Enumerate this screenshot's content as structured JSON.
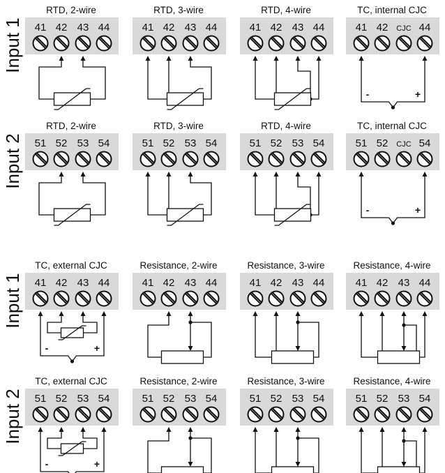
{
  "row_labels": [
    "Input 1",
    "Input 2",
    "Input 1",
    "Input 2"
  ],
  "terminal_sets": {
    "input1": [
      "41",
      "42",
      "43",
      "44"
    ],
    "input1_cjc": [
      "41",
      "42",
      "CJC",
      "44"
    ],
    "input2": [
      "51",
      "52",
      "53",
      "54"
    ],
    "input2_cjc": [
      "51",
      "52",
      "CJC",
      "54"
    ]
  },
  "panel_titles": {
    "rtd2": "RTD, 2-wire",
    "rtd3": "RTD, 3-wire",
    "rtd4": "RTD, 4-wire",
    "tc_int": "TC, internal CJC",
    "tc_ext": "TC, external CJC",
    "res2": "Resistance, 2-wire",
    "res3": "Resistance, 3-wire",
    "res4": "Resistance, 4-wire"
  },
  "polarity": {
    "minus": "-",
    "plus": "+"
  },
  "rows": [
    {
      "label": 0,
      "terms": [
        "input1",
        "input1",
        "input1",
        "input1_cjc"
      ],
      "panels": [
        "rtd2",
        "rtd3",
        "rtd4",
        "tc_int"
      ]
    },
    {
      "label": 1,
      "terms": [
        "input2",
        "input2",
        "input2",
        "input2_cjc"
      ],
      "panels": [
        "rtd2",
        "rtd3",
        "rtd4",
        "tc_int"
      ]
    },
    {
      "label": 2,
      "terms": [
        "input1",
        "input1",
        "input1",
        "input1"
      ],
      "panels": [
        "tc_ext",
        "res2",
        "res3",
        "res4"
      ]
    },
    {
      "label": 3,
      "terms": [
        "input2",
        "input2",
        "input2",
        "input2"
      ],
      "panels": [
        "tc_ext",
        "res2",
        "res3",
        "res4"
      ]
    }
  ],
  "colors": {
    "terminal_block": "#d9d9d9",
    "line": "#111111"
  }
}
